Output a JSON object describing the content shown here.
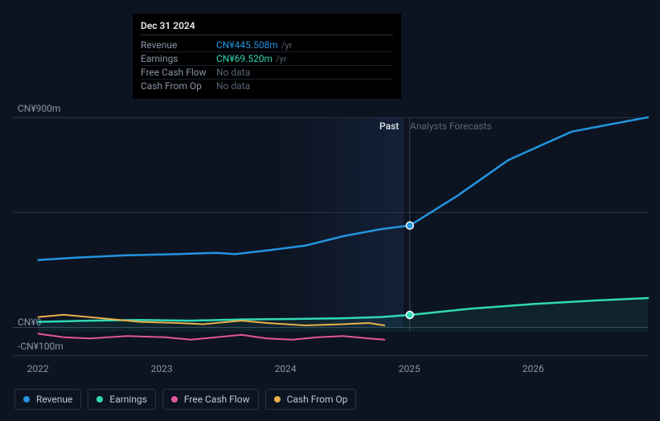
{
  "tooltip": {
    "date": "Dec 31 2024",
    "rows": [
      {
        "label": "Revenue",
        "value": "CN¥445.508m",
        "unit": "/yr",
        "color": "#2394df",
        "nodata": false
      },
      {
        "label": "Earnings",
        "value": "CN¥69.520m",
        "unit": "/yr",
        "color": "#30d9b7",
        "nodata": false
      },
      {
        "label": "Free Cash Flow",
        "value": "No data",
        "unit": "",
        "color": "",
        "nodata": true
      },
      {
        "label": "Cash From Op",
        "value": "No data",
        "unit": "",
        "color": "",
        "nodata": true
      }
    ]
  },
  "chart": {
    "background_color": "#0d1421",
    "grid_color": "#2a3142",
    "past_label": "Past",
    "forecast_label": "Analysts Forecasts",
    "y_axis": {
      "min": -100,
      "max": 900,
      "ticks": [
        {
          "value": 900,
          "label": "CN¥900m"
        },
        {
          "value": 0,
          "label": "CN¥0"
        },
        {
          "value": -100,
          "label": "-CN¥100m"
        }
      ]
    },
    "x_axis": {
      "ticks": [
        {
          "x": 0.04,
          "label": "2022"
        },
        {
          "x": 0.235,
          "label": "2023"
        },
        {
          "x": 0.43,
          "label": "2024"
        },
        {
          "x": 0.625,
          "label": "2025"
        },
        {
          "x": 0.82,
          "label": "2026"
        }
      ]
    },
    "present_x": 0.625,
    "past_shade_start_x": 0.43,
    "series": [
      {
        "name": "Revenue",
        "color": "#2394df",
        "width": 2.5,
        "marker_at_present": true,
        "points": [
          [
            0.04,
            300
          ],
          [
            0.1,
            310
          ],
          [
            0.18,
            320
          ],
          [
            0.26,
            325
          ],
          [
            0.32,
            330
          ],
          [
            0.35,
            325
          ],
          [
            0.4,
            340
          ],
          [
            0.46,
            360
          ],
          [
            0.52,
            400
          ],
          [
            0.58,
            430
          ],
          [
            0.625,
            445
          ],
          [
            0.7,
            570
          ],
          [
            0.78,
            720
          ],
          [
            0.88,
            840
          ],
          [
            1.0,
            900
          ]
        ]
      },
      {
        "name": "Earnings",
        "color": "#30d9b7",
        "width": 2.5,
        "marker_at_present": true,
        "fill": "rgba(48,217,183,0.08)",
        "points": [
          [
            0.04,
            40
          ],
          [
            0.12,
            45
          ],
          [
            0.2,
            48
          ],
          [
            0.28,
            45
          ],
          [
            0.36,
            50
          ],
          [
            0.44,
            52
          ],
          [
            0.52,
            55
          ],
          [
            0.58,
            60
          ],
          [
            0.625,
            69
          ],
          [
            0.72,
            95
          ],
          [
            0.82,
            115
          ],
          [
            0.92,
            130
          ],
          [
            1.0,
            140
          ]
        ]
      },
      {
        "name": "Cash From Op",
        "color": "#eab04a",
        "width": 2,
        "end_x": 0.585,
        "points": [
          [
            0.04,
            60
          ],
          [
            0.08,
            70
          ],
          [
            0.14,
            55
          ],
          [
            0.2,
            40
          ],
          [
            0.26,
            35
          ],
          [
            0.3,
            30
          ],
          [
            0.36,
            45
          ],
          [
            0.4,
            35
          ],
          [
            0.46,
            25
          ],
          [
            0.52,
            30
          ],
          [
            0.56,
            35
          ],
          [
            0.585,
            25
          ]
        ]
      },
      {
        "name": "Free Cash Flow",
        "color": "#e256a0",
        "width": 2,
        "end_x": 0.585,
        "points": [
          [
            0.04,
            -10
          ],
          [
            0.08,
            -25
          ],
          [
            0.12,
            -30
          ],
          [
            0.18,
            -20
          ],
          [
            0.24,
            -25
          ],
          [
            0.28,
            -35
          ],
          [
            0.32,
            -25
          ],
          [
            0.36,
            -15
          ],
          [
            0.4,
            -30
          ],
          [
            0.44,
            -35
          ],
          [
            0.48,
            -25
          ],
          [
            0.52,
            -20
          ],
          [
            0.56,
            -30
          ],
          [
            0.585,
            -35
          ]
        ]
      }
    ]
  },
  "legend": [
    {
      "label": "Revenue",
      "color": "#2394df"
    },
    {
      "label": "Earnings",
      "color": "#30d9b7"
    },
    {
      "label": "Free Cash Flow",
      "color": "#e256a0"
    },
    {
      "label": "Cash From Op",
      "color": "#eab04a"
    }
  ]
}
